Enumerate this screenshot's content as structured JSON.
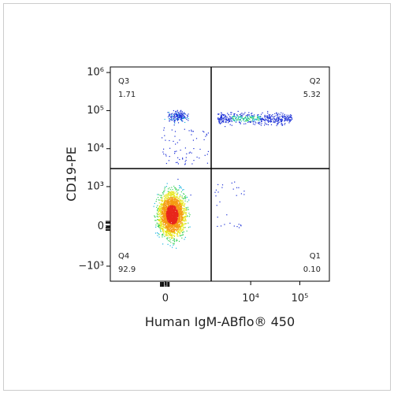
{
  "chart_data": {
    "type": "flow-density",
    "x_label": "Human IgM-ABflo® 450",
    "y_label": "CD19-PE",
    "xscale": "biexponential",
    "yscale": "biexponential",
    "xlim": [
      -2400,
      400000
    ],
    "ylim": [
      -2500,
      1400000
    ],
    "xticks": [
      0,
      {
        "value": 10000,
        "label": "10⁴"
      },
      {
        "value": 100000,
        "label": "10⁵"
      }
    ],
    "yticks": [
      {
        "value": 1000000,
        "label": "10⁶"
      },
      {
        "value": 100000,
        "label": "10⁵"
      },
      {
        "value": 10000,
        "label": "10⁴"
      },
      {
        "value": 1000,
        "label": "10³"
      },
      0,
      {
        "value": -1000,
        "label": "−10³"
      }
    ],
    "quadrants": {
      "names": [
        "Q1",
        "Q2",
        "Q3",
        "Q4"
      ],
      "values": [
        0.1,
        5.32,
        1.71,
        92.9
      ],
      "value_labels": [
        "0.10",
        "5.32",
        "1.71",
        "92.9"
      ]
    }
  }
}
